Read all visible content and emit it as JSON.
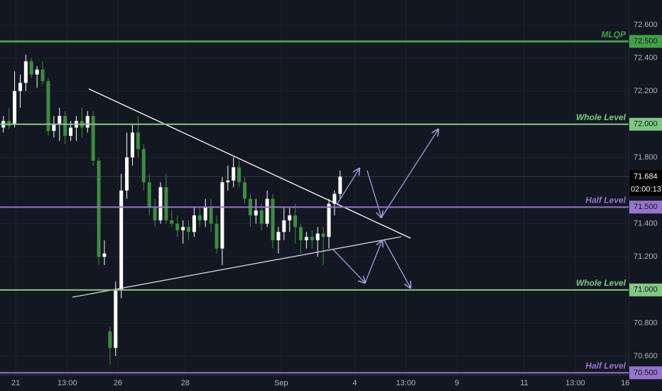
{
  "chart_data": {
    "type": "candlestick",
    "up_color": "#ffffff",
    "down_color": "#3d8c40",
    "open": [
      71.98,
      72.02,
      72.0,
      72.2,
      72.25,
      72.38,
      72.3,
      72.33,
      72.26,
      71.96,
      72.0,
      72.05,
      71.93,
      71.98,
      72.02,
      71.98,
      72.05,
      71.78,
      71.2,
      70.75,
      70.65,
      71.0,
      71.6,
      71.8,
      71.95,
      71.85,
      71.65,
      71.5,
      71.42,
      71.62,
      71.42,
      71.4,
      71.36,
      71.38,
      71.35,
      71.45,
      71.42,
      71.5,
      71.4,
      71.25,
      71.65,
      71.66,
      71.74,
      71.65,
      71.55,
      71.45,
      71.48,
      71.4,
      71.55,
      71.3,
      71.35,
      71.42,
      71.45,
      71.38,
      71.3,
      71.32,
      71.3,
      71.34,
      71.32,
      71.52,
      71.58
    ],
    "high": [
      72.05,
      72.1,
      72.32,
      72.3,
      72.42,
      72.4,
      72.35,
      72.38,
      72.28,
      72.05,
      72.1,
      72.08,
      72.02,
      72.05,
      72.1,
      72.08,
      72.08,
      71.8,
      71.3,
      70.78,
      71.05,
      71.7,
      71.95,
      72.0,
      72.05,
      71.88,
      71.7,
      71.55,
      71.65,
      71.7,
      71.48,
      71.45,
      71.42,
      71.42,
      71.5,
      71.5,
      71.55,
      71.55,
      71.45,
      71.68,
      71.75,
      71.8,
      71.78,
      71.68,
      71.58,
      71.55,
      71.52,
      71.6,
      71.58,
      71.38,
      71.5,
      71.5,
      71.52,
      71.4,
      71.35,
      71.36,
      71.38,
      71.38,
      71.55,
      71.6,
      71.72
    ],
    "low": [
      71.95,
      71.97,
      71.98,
      72.1,
      72.2,
      72.28,
      72.22,
      72.24,
      71.93,
      71.92,
      71.9,
      71.88,
      71.9,
      71.9,
      71.92,
      71.95,
      71.75,
      71.15,
      71.15,
      70.55,
      70.6,
      70.95,
      71.55,
      71.75,
      71.8,
      71.6,
      71.45,
      71.38,
      71.4,
      71.4,
      71.38,
      71.32,
      71.28,
      71.3,
      71.32,
      71.38,
      71.38,
      71.35,
      71.22,
      71.15,
      71.6,
      71.62,
      71.62,
      71.52,
      71.38,
      71.4,
      71.36,
      71.38,
      71.25,
      71.22,
      71.3,
      71.35,
      71.28,
      71.22,
      71.25,
      71.25,
      71.2,
      71.15,
      71.25,
      71.45,
      71.55
    ],
    "close": [
      72.02,
      71.99,
      72.2,
      72.25,
      72.38,
      72.3,
      72.33,
      72.26,
      71.96,
      72.0,
      72.05,
      71.93,
      71.98,
      72.02,
      71.98,
      72.05,
      71.78,
      71.2,
      71.22,
      70.65,
      71.0,
      71.6,
      71.8,
      71.95,
      71.85,
      71.65,
      71.5,
      71.42,
      71.62,
      71.42,
      71.4,
      71.36,
      71.38,
      71.35,
      71.45,
      71.42,
      71.5,
      71.4,
      71.25,
      71.65,
      71.66,
      71.74,
      71.65,
      71.55,
      71.45,
      71.48,
      71.4,
      71.55,
      71.3,
      71.35,
      71.42,
      71.45,
      71.38,
      71.3,
      71.32,
      71.3,
      71.34,
      71.32,
      71.52,
      71.58,
      71.684
    ],
    "xlim": [
      -0.6,
      111.4
    ],
    "xticks": [
      {
        "value": 2.2,
        "label": "21"
      },
      {
        "value": 11.4,
        "label": "13:00"
      },
      {
        "value": 20.4,
        "label": "26"
      },
      {
        "value": 32.4,
        "label": "28"
      },
      {
        "value": 49.5,
        "label": "Sep"
      },
      {
        "value": 62.6,
        "label": "4"
      },
      {
        "value": 71.7,
        "label": "13:00"
      },
      {
        "value": 80.8,
        "label": "9"
      },
      {
        "value": 92.8,
        "label": "11"
      },
      {
        "value": 101.9,
        "label": "13:00"
      },
      {
        "value": 110.8,
        "label": "16"
      }
    ],
    "ylim": [
      70.39,
      72.75
    ],
    "yticks": [
      {
        "value": 72.6,
        "label": "72.600"
      },
      {
        "value": 72.4,
        "label": "72.400"
      },
      {
        "value": 72.2,
        "label": "72.200"
      },
      {
        "value": 71.8,
        "label": "71.800"
      },
      {
        "value": 71.4,
        "label": "71.400"
      },
      {
        "value": 71.2,
        "label": "71.200"
      },
      {
        "value": 70.8,
        "label": "70.800"
      },
      {
        "value": 70.6,
        "label": "70.600"
      }
    ],
    "grid": true,
    "levels": [
      {
        "name": "MLQP",
        "value": 72.5,
        "label": "72.500",
        "color": "#43a047"
      },
      {
        "name": "Whole Level",
        "value": 72.0,
        "label": "72.000",
        "color": "#81c784"
      },
      {
        "name": "Half Level",
        "value": 71.5,
        "label": "71.500",
        "color": "#9575cd"
      },
      {
        "name": "Whole Level",
        "value": 71.0,
        "label": "71.000",
        "color": "#81c784"
      },
      {
        "name": "Half Level",
        "value": 70.5,
        "label": "70.500",
        "color": "#9575cd"
      }
    ],
    "last_price": {
      "value": 71.684,
      "label": "71.684"
    },
    "countdown": "02:00:13"
  }
}
